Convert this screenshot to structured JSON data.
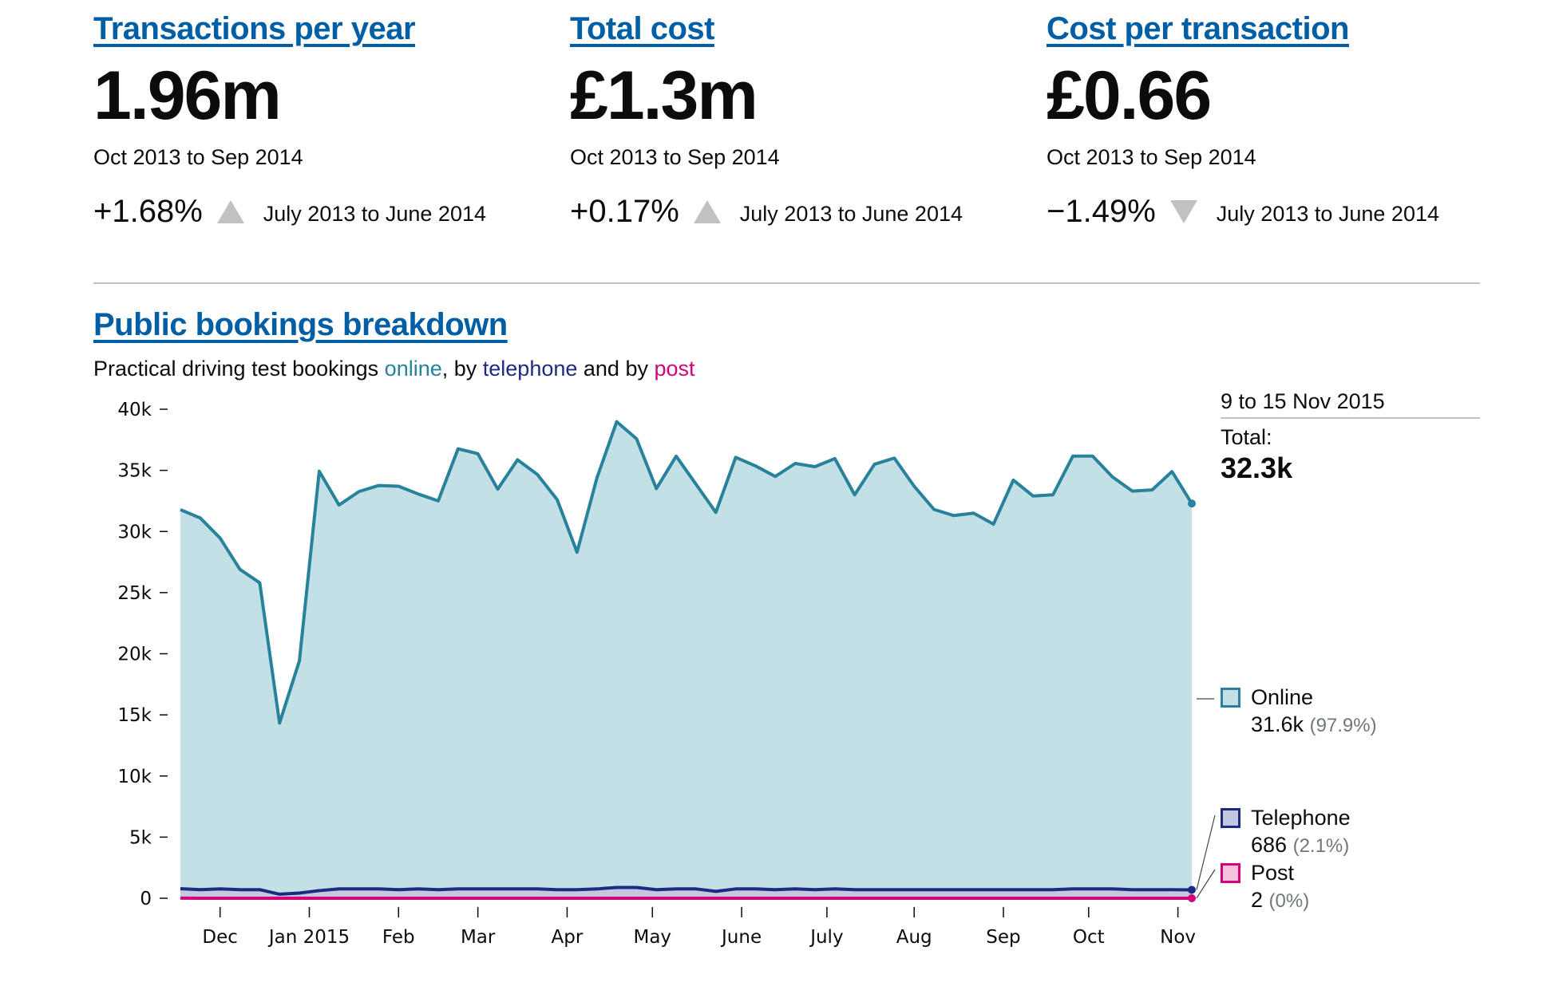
{
  "kpis": [
    {
      "title": "Transactions per year",
      "value": "1.96m",
      "period": "Oct 2013 to Sep 2014",
      "change": "+1.68%",
      "trend": "up",
      "change_period": "July 2013 to June 2014"
    },
    {
      "title": "Total cost",
      "value": "£1.3m",
      "period": "Oct 2013 to Sep 2014",
      "change": "+0.17%",
      "trend": "up",
      "change_period": "July 2013 to June 2014"
    },
    {
      "title": "Cost per transaction",
      "value": "£0.66",
      "period": "Oct 2013 to Sep 2014",
      "change": "−1.49%",
      "trend": "down",
      "change_period": "July 2013 to June 2014"
    }
  ],
  "section": {
    "title": "Public bookings breakdown",
    "subtitle_parts": [
      "Practical driving test bookings ",
      "online",
      ", by ",
      "telephone",
      " and by ",
      "post"
    ]
  },
  "tooltip": {
    "date": "9 to 15 Nov 2015",
    "total_label": "Total:",
    "total_value": "32.3k"
  },
  "legend": [
    {
      "name": "Online",
      "value": "31.6k",
      "pct": "(97.9%)"
    },
    {
      "name": "Telephone",
      "value": "686",
      "pct": "(2.1%)"
    },
    {
      "name": "Post",
      "value": "2",
      "pct": "(0%)"
    }
  ],
  "colors": {
    "link": "#005ea5",
    "online": "#28829b",
    "online_fill": "#c2e0e5",
    "telephone": "#1d2a82",
    "telephone_fill": "#c4c7e0",
    "post": "#d6007a",
    "post_fill": "#f3c2df",
    "trend": "#bfc1c3"
  },
  "chart_data": {
    "type": "area",
    "title": "Public bookings breakdown",
    "xlabel": "",
    "ylabel": "",
    "ylim": [
      0,
      40000
    ],
    "yticks": [
      0,
      5000,
      10000,
      15000,
      20000,
      25000,
      30000,
      35000,
      40000
    ],
    "ytick_labels": [
      "0",
      "5k",
      "10k",
      "15k",
      "20k",
      "25k",
      "30k",
      "35k",
      "40k"
    ],
    "x_labels": [
      {
        "label": "Dec",
        "week": 2
      },
      {
        "label": "Jan 2015",
        "week": 6.5
      },
      {
        "label": "Feb",
        "week": 11
      },
      {
        "label": "Mar",
        "week": 15
      },
      {
        "label": "Apr",
        "week": 19.5
      },
      {
        "label": "May",
        "week": 23.8
      },
      {
        "label": "June",
        "week": 28.3
      },
      {
        "label": "July",
        "week": 32.6
      },
      {
        "label": "Aug",
        "week": 37
      },
      {
        "label": "Sep",
        "week": 41.5
      },
      {
        "label": "Oct",
        "week": 45.8
      },
      {
        "label": "Nov",
        "week": 50.3
      }
    ],
    "x_count": 52,
    "last_period": "9 to 15 Nov 2015",
    "legend_position": "right",
    "grid": false,
    "series": [
      {
        "name": "Online",
        "values": [
          31000,
          30400,
          28700,
          26200,
          25100,
          14000,
          19000,
          34300,
          31400,
          32500,
          33000,
          33000,
          32300,
          31800,
          36000,
          35600,
          32700,
          35100,
          33900,
          31900,
          27600,
          33600,
          38100,
          36700,
          32800,
          35400,
          33100,
          31000,
          35300,
          34600,
          33800,
          34800,
          34600,
          35200,
          32300,
          34800,
          35300,
          33000,
          31100,
          30600,
          30800,
          29900,
          33500,
          32200,
          32300,
          35400,
          35400,
          33700,
          32600,
          32700,
          34200,
          31600
        ]
      },
      {
        "name": "Telephone",
        "values": [
          780,
          700,
          760,
          700,
          700,
          330,
          420,
          620,
          760,
          760,
          760,
          700,
          760,
          700,
          760,
          760,
          760,
          760,
          760,
          700,
          700,
          760,
          880,
          880,
          700,
          760,
          760,
          560,
          760,
          760,
          700,
          760,
          700,
          760,
          700,
          700,
          700,
          700,
          700,
          700,
          700,
          700,
          700,
          700,
          700,
          760,
          760,
          760,
          700,
          700,
          700,
          686
        ]
      },
      {
        "name": "Post",
        "values": [
          5,
          4,
          4,
          3,
          3,
          2,
          2,
          4,
          4,
          3,
          3,
          3,
          3,
          3,
          3,
          3,
          3,
          3,
          3,
          3,
          3,
          3,
          3,
          3,
          3,
          3,
          3,
          3,
          3,
          3,
          3,
          3,
          3,
          3,
          3,
          3,
          3,
          3,
          3,
          3,
          3,
          3,
          3,
          3,
          3,
          3,
          3,
          3,
          3,
          3,
          3,
          2
        ]
      }
    ]
  }
}
